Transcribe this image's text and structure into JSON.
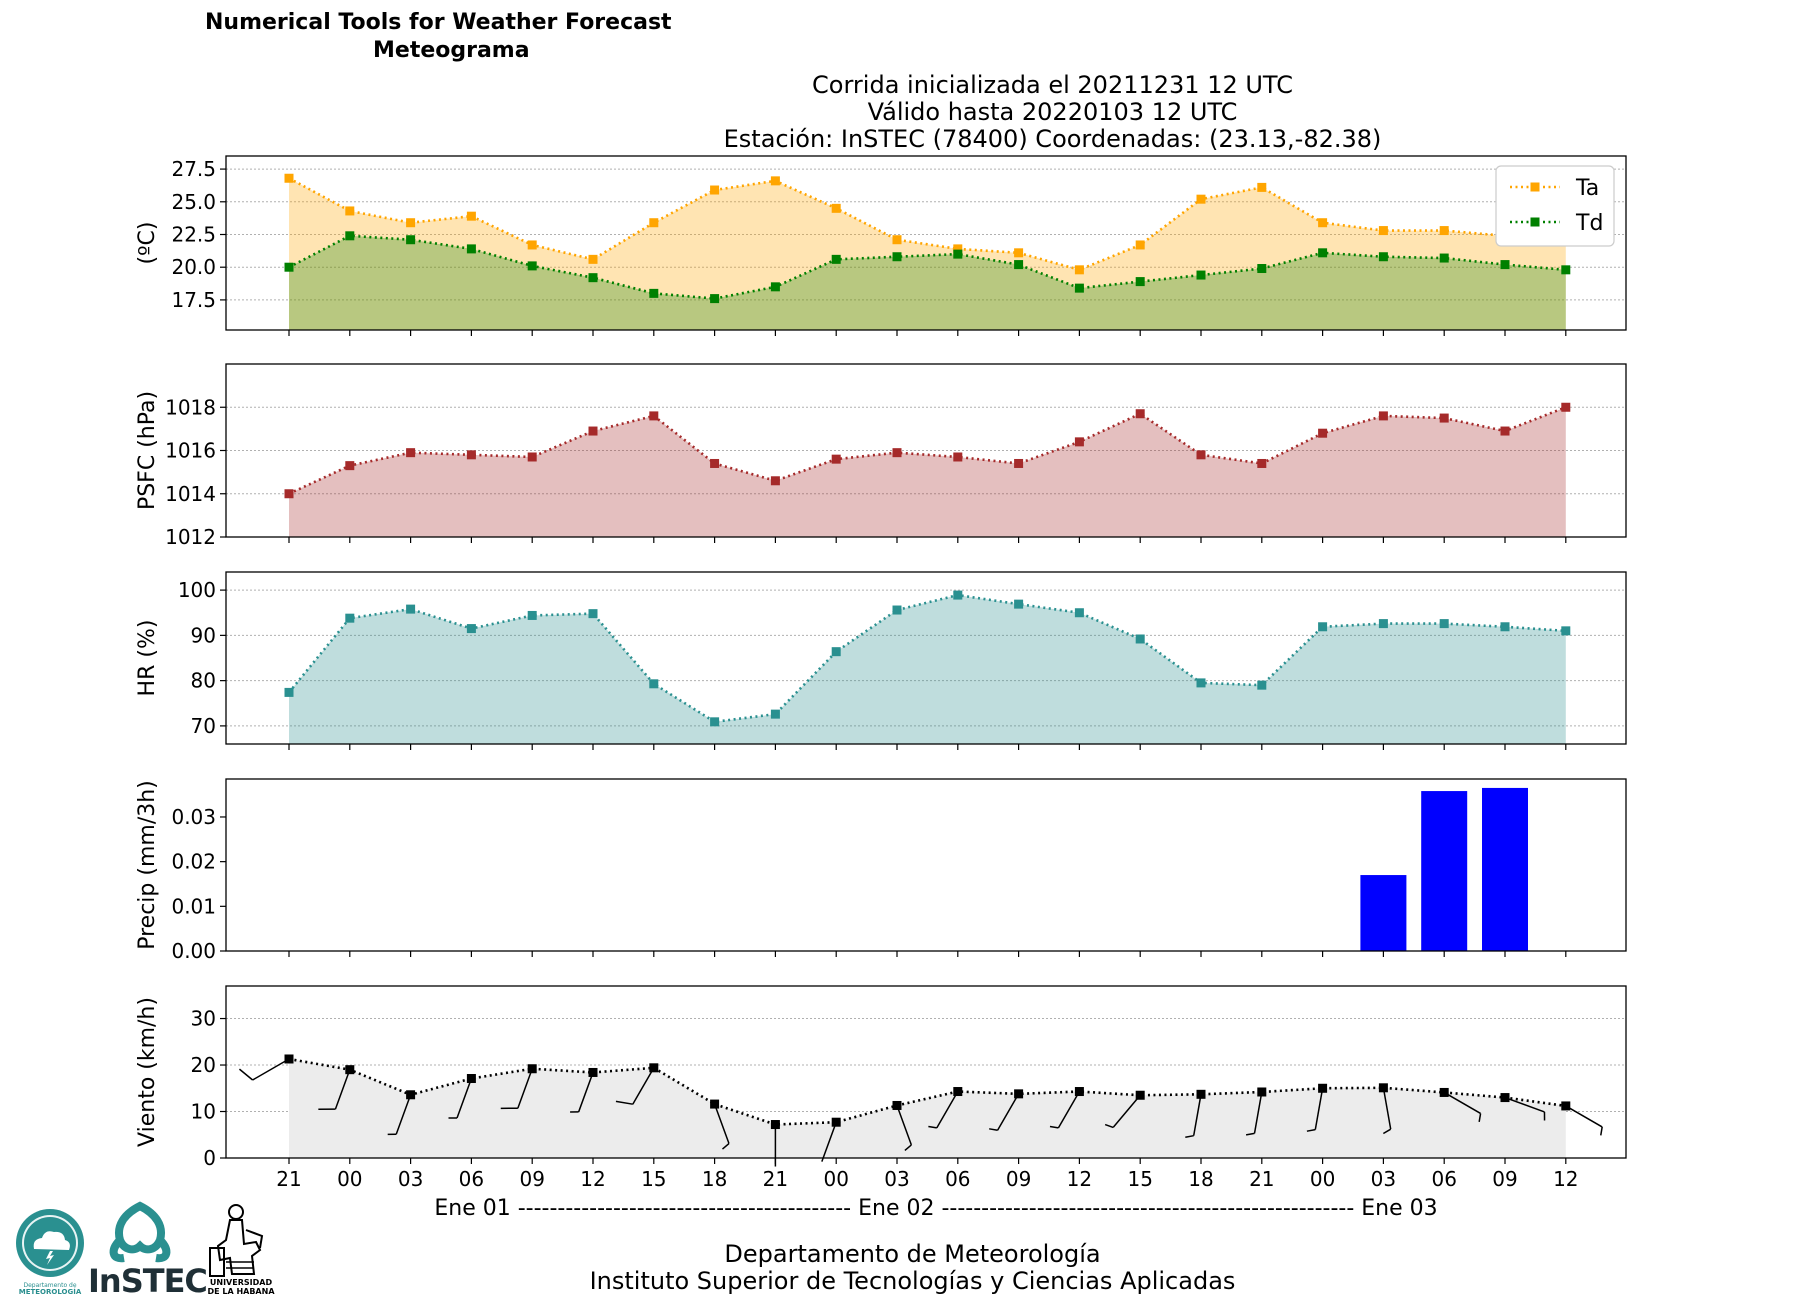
{
  "header": {
    "title": "Numerical Tools for Weather Forecast",
    "subtitle": "Meteograma",
    "caption_line1": "Corrida inicializada el 20211231 12 UTC",
    "caption_line2": "Válido hasta 20220103 12 UTC",
    "caption_line3": "Estación: InSTEC (78400) Coordenadas: (23.13,-82.38)"
  },
  "footer": {
    "line1": "Departamento de Meteorología",
    "line2": "Instituto Superior de Tecnologías y Ciencias Aplicadas"
  },
  "logos": {
    "dm_text_1": "Departamento de",
    "dm_text_2": "METEOROLOGÍA",
    "instec_text": "InSTEC",
    "uh_text_1": "UNIVERSIDAD",
    "uh_text_2": "DE LA HABANA"
  },
  "colors": {
    "ta": "#ffa500",
    "td": "#008000",
    "psfc": "#a52a2a",
    "hr": "#2a9090",
    "precip": "#0000ff",
    "wind_fill": "#ececec"
  },
  "chart_data": [
    {
      "type": "line",
      "panel": "temperature",
      "ylabel": "(ºC)",
      "ylim": [
        15.2,
        28.5
      ],
      "yticks": [
        17.5,
        20.0,
        22.5,
        25.0,
        27.5
      ],
      "grid": true,
      "legend": "top-right",
      "series": [
        {
          "name": "Ta",
          "values": [
            26.8,
            24.3,
            23.4,
            23.9,
            21.7,
            20.6,
            23.4,
            25.9,
            26.6,
            24.5,
            22.1,
            21.4,
            21.1,
            19.8,
            21.7,
            25.2,
            26.1,
            23.4,
            22.8,
            22.8,
            22.4,
            22.3
          ]
        },
        {
          "name": "Td",
          "values": [
            20.0,
            22.4,
            22.1,
            21.4,
            20.1,
            19.2,
            18.0,
            17.6,
            18.5,
            20.6,
            20.8,
            21.0,
            20.2,
            18.4,
            18.9,
            19.4,
            19.9,
            21.1,
            20.8,
            20.7,
            20.2,
            19.8
          ]
        }
      ]
    },
    {
      "type": "line",
      "panel": "pressure",
      "ylabel": "PSFC (hPa)",
      "ylim": [
        1012,
        1020
      ],
      "yticks": [
        1012,
        1014,
        1016,
        1018
      ],
      "grid": true,
      "series": [
        {
          "values": [
            1014.0,
            1015.3,
            1015.9,
            1015.8,
            1015.7,
            1016.9,
            1017.6,
            1015.4,
            1014.6,
            1015.6,
            1015.9,
            1015.7,
            1015.4,
            1016.4,
            1017.7,
            1015.8,
            1015.4,
            1016.8,
            1017.6,
            1017.5,
            1016.9,
            1018.0
          ]
        }
      ]
    },
    {
      "type": "line",
      "panel": "humidity",
      "ylabel": "HR (%)",
      "ylim": [
        66,
        104
      ],
      "yticks": [
        70,
        80,
        90,
        100
      ],
      "grid": true,
      "series": [
        {
          "values": [
            77.4,
            93.8,
            95.8,
            91.5,
            94.4,
            94.8,
            79.3,
            70.9,
            72.6,
            86.4,
            95.6,
            98.9,
            96.9,
            95.0,
            89.2,
            79.5,
            79.0,
            91.9,
            92.6,
            92.6,
            91.9,
            91.0
          ]
        }
      ]
    },
    {
      "type": "bar",
      "panel": "precipitation",
      "ylabel": "Precip (mm/3h)",
      "ylim": [
        0,
        0.0385
      ],
      "yticks": [
        0.0,
        0.01,
        0.02,
        0.03
      ],
      "grid": false,
      "values": [
        0,
        0,
        0,
        0,
        0,
        0,
        0,
        0,
        0,
        0,
        0,
        0,
        0,
        0,
        0,
        0,
        0,
        0,
        0.017,
        0.0358,
        0.0365,
        0
      ]
    },
    {
      "type": "line",
      "panel": "wind",
      "ylabel": "Viento (km/h)",
      "ylim": [
        0,
        37
      ],
      "yticks": [
        0,
        10,
        20,
        30
      ],
      "grid": true,
      "series": [
        {
          "values": [
            21.3,
            19.0,
            13.6,
            17.1,
            19.2,
            18.4,
            19.4,
            11.6,
            7.2,
            7.7,
            11.3,
            14.3,
            13.8,
            14.3,
            13.5,
            13.7,
            14.2,
            15.0,
            15.1,
            14.1,
            13.0,
            11.2
          ]
        }
      ],
      "direction_deg": [
        300,
        340,
        340,
        340,
        340,
        340,
        330,
        20,
        0,
        340,
        20,
        330,
        330,
        330,
        320,
        350,
        350,
        350,
        10,
        60,
        70,
        60
      ]
    }
  ],
  "x_axis": {
    "tick_labels": [
      "21",
      "00",
      "03",
      "06",
      "09",
      "12",
      "15",
      "18",
      "21",
      "00",
      "03",
      "06",
      "09",
      "12",
      "15",
      "18",
      "21",
      "00",
      "03",
      "06",
      "09",
      "12"
    ],
    "date_line": "Ene 01 ------------------------------------------ Ene 02 ---------------------------------------------------- Ene 03"
  }
}
